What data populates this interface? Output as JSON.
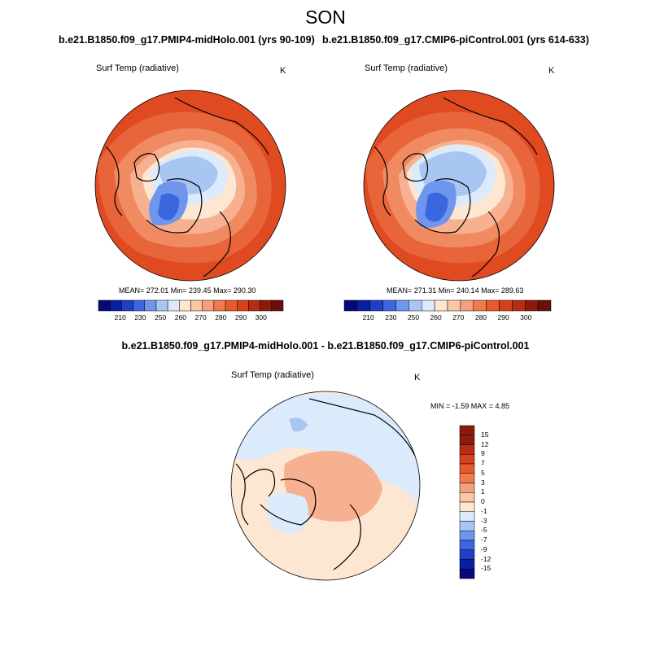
{
  "figure": {
    "season_title": "SON",
    "panel_left": {
      "run_title": "b.e21.B1850.f09_g17.PMIP4-midHolo.001 (yrs 90-109)",
      "field_label": "Surf Temp (radiative)",
      "unit_label": "K",
      "stats_text": "MEAN= 272.01  Min= 239.45  Max= 290.30"
    },
    "panel_right": {
      "run_title": "b.e21.B1850.f09_g17.CMIP6-piControl.001 (yrs 614-633)",
      "field_label": "Surf Temp (radiative)",
      "unit_label": "K",
      "stats_text": "MEAN= 271.31  Min= 240.14  Max= 289.63"
    },
    "panel_diff": {
      "title": "b.e21.B1850.f09_g17.PMIP4-midHolo.001 - b.e21.B1850.f09_g17.CMIP6-piControl.001",
      "field_label": "Surf Temp (radiative)",
      "unit_label": "K",
      "minmax_text": "MIN =  -1.59 MAX =   4.85"
    }
  },
  "colorbar_abs": {
    "labels": [
      "210",
      "230",
      "250",
      "260",
      "270",
      "280",
      "290",
      "300"
    ],
    "colors": [
      "#08087a",
      "#0a1ea0",
      "#1d3ec8",
      "#3a66e0",
      "#6f96ec",
      "#a9c6f2",
      "#dcebfb",
      "#fde6d2",
      "#f9c6a6",
      "#f5a07a",
      "#f07a4e",
      "#e85a2c",
      "#d8401c",
      "#b82c14",
      "#8c1a0c",
      "#6a0f08"
    ]
  },
  "colorbar_diff": {
    "labels": [
      "15",
      "12",
      "9",
      "7",
      "5",
      "3",
      "1",
      "0",
      "-1",
      "-3",
      "-5",
      "-7",
      "-9",
      "-12",
      "-15"
    ],
    "colors": [
      "#8c1a0c",
      "#b82c14",
      "#d8401c",
      "#e85a2c",
      "#f07a4e",
      "#f5a07a",
      "#f9c6a6",
      "#fde6d2",
      "#dcebfb",
      "#a9c6f2",
      "#6f96ec",
      "#3a66e0",
      "#1d3ec8",
      "#0a1ea0",
      "#08087a"
    ]
  },
  "palette": {
    "ocean_warm": "#e8643a",
    "ocean_hot": "#e04a20",
    "mid_orange": "#f08a60",
    "light_orange": "#f7b090",
    "pale": "#fde6d2",
    "pale_blue": "#dcebfb",
    "light_blue": "#a9c6f2",
    "mid_blue": "#6f96ec",
    "deep_blue": "#3a66e0"
  }
}
